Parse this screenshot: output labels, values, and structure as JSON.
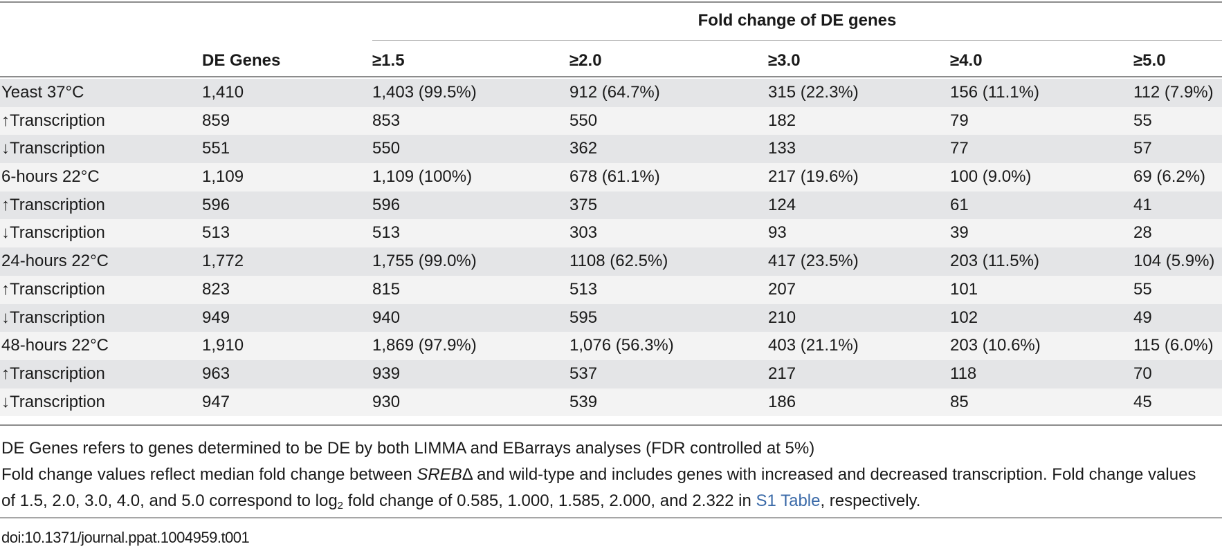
{
  "table": {
    "group_header": "Fold change of DE genes",
    "columns": [
      "",
      "DE Genes",
      "≥1.5",
      "≥2.0",
      "≥3.0",
      "≥4.0",
      "≥5.0"
    ],
    "rows": [
      {
        "label": "Yeast 37°C",
        "cells": [
          "1,410",
          "1,403 (99.5%)",
          "912 (64.7%)",
          "315 (22.3%)",
          "156 (11.1%)",
          "112 (7.9%)"
        ]
      },
      {
        "label": "↑Transcription",
        "cells": [
          "859",
          "853",
          "550",
          "182",
          "79",
          "55"
        ]
      },
      {
        "label": "↓Transcription",
        "cells": [
          "551",
          "550",
          "362",
          "133",
          "77",
          "57"
        ]
      },
      {
        "label": "6-hours 22°C",
        "cells": [
          "1,109",
          "1,109 (100%)",
          "678 (61.1%)",
          "217 (19.6%)",
          "100 (9.0%)",
          "69 (6.2%)"
        ]
      },
      {
        "label": "↑Transcription",
        "cells": [
          "596",
          "596",
          "375",
          "124",
          "61",
          "41"
        ]
      },
      {
        "label": "↓Transcription",
        "cells": [
          "513",
          "513",
          "303",
          "93",
          "39",
          "28"
        ]
      },
      {
        "label": "24-hours 22°C",
        "cells": [
          "1,772",
          "1,755 (99.0%)",
          "1108 (62.5%)",
          "417 (23.5%)",
          "203 (11.5%)",
          "104 (5.9%)"
        ]
      },
      {
        "label": "↑Transcription",
        "cells": [
          "823",
          "815",
          "513",
          "207",
          "101",
          "55"
        ]
      },
      {
        "label": "↓Transcription",
        "cells": [
          "949",
          "940",
          "595",
          "210",
          "102",
          "49"
        ]
      },
      {
        "label": "48-hours 22°C",
        "cells": [
          "1,910",
          "1,869 (97.9%)",
          "1,076 (56.3%)",
          "403 (21.1%)",
          "203 (10.6%)",
          "115 (6.0%)"
        ]
      },
      {
        "label": "↑Transcription",
        "cells": [
          "963",
          "939",
          "537",
          "217",
          "118",
          "70"
        ]
      },
      {
        "label": "↓Transcription",
        "cells": [
          "947",
          "930",
          "539",
          "186",
          "85",
          "45"
        ]
      }
    ]
  },
  "notes": {
    "line1": "DE Genes refers to genes determined to be DE by both LIMMA and EBarrays analyses (FDR controlled at 5%)",
    "line2_a": "Fold change values reflect median fold change between ",
    "line2_italic": "SREB",
    "line2_b": "Δ and wild-type and includes genes with increased and decreased transcription. Fold change values of 1.5, 2.0, 3.0, 4.0, and 5.0 correspond to log",
    "line2_sub": "2",
    "line2_c": " fold change of 0.585, 1.000, 1.585, 2.000, and 2.322 in ",
    "line2_link": "S1 Table",
    "line2_d": ", respectively."
  },
  "doi": "doi:10.1371/journal.ppat.1004959.t001",
  "colors": {
    "rule": "#8c8c8c",
    "shade": "#e4e5e7",
    "link": "#3b6aa8"
  }
}
